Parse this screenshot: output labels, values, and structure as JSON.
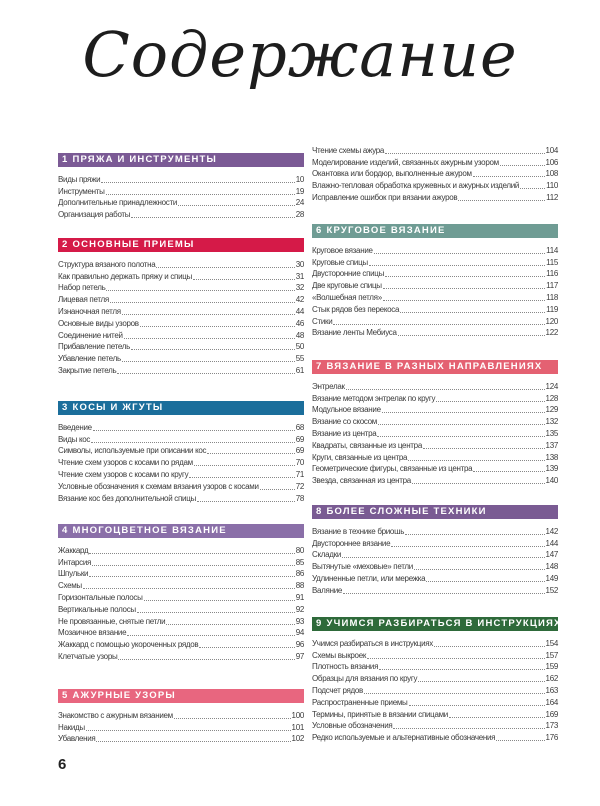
{
  "title": "Содержание",
  "page_number": "6",
  "left_column": [
    {
      "num": "1",
      "title": "ПРЯЖА И ИНСТРУМЕНТЫ",
      "color": "#7b5a95",
      "items": [
        {
          "label": "Виды пряжи",
          "page": "10"
        },
        {
          "label": "Инструменты",
          "page": "19"
        },
        {
          "label": "Дополнительные принадлежности",
          "page": "24"
        },
        {
          "label": "Организация работы",
          "page": "28"
        }
      ]
    },
    {
      "num": "2",
      "title": "ОСНОВНЫЕ ПРИЕМЫ",
      "color": "#d51a48",
      "items": [
        {
          "label": "Структура вязаного полотна",
          "page": "30"
        },
        {
          "label": "Как правильно держать пряжу и спицы",
          "page": "31"
        },
        {
          "label": "Набор петель",
          "page": "32"
        },
        {
          "label": "Лицевая петля",
          "page": "42"
        },
        {
          "label": "Изнаночная петля",
          "page": "44"
        },
        {
          "label": "Основные виды узоров",
          "page": "46"
        },
        {
          "label": "Соединение нитей",
          "page": "48"
        },
        {
          "label": "Прибавление петель",
          "page": "50"
        },
        {
          "label": "Убавление петель",
          "page": "55"
        },
        {
          "label": "Закрытие петель",
          "page": "61"
        }
      ]
    },
    {
      "num": "3",
      "title": "КОСЫ И ЖГУТЫ",
      "color": "#1b6e9b",
      "items": [
        {
          "label": "Введение",
          "page": "68"
        },
        {
          "label": "Виды кос",
          "page": "69"
        },
        {
          "label": "Символы, используемые при описании кос",
          "page": "69"
        },
        {
          "label": "Чтение схем узоров с косами по рядам",
          "page": "70"
        },
        {
          "label": "Чтение схем узоров с косами по кругу",
          "page": "71"
        },
        {
          "label": "Условные обозначения к схемам вязания узоров с косами",
          "page": "72"
        },
        {
          "label": "Вязание кос без дополнительной спицы",
          "page": "78"
        }
      ]
    },
    {
      "num": "4",
      "title": "МНОГОЦВЕТНОЕ ВЯЗАНИЕ",
      "color": "#8a6fa8",
      "items": [
        {
          "label": "Жаккард",
          "page": "80"
        },
        {
          "label": "Интарсия",
          "page": "85"
        },
        {
          "label": "Шпульки",
          "page": "86"
        },
        {
          "label": "Схемы",
          "page": "88"
        },
        {
          "label": "Горизонтальные полосы",
          "page": "91"
        },
        {
          "label": "Вертикальные полосы",
          "page": "92"
        },
        {
          "label": "Не провязанные, снятые петли",
          "page": "93"
        },
        {
          "label": "Мозаичное вязание",
          "page": "94"
        },
        {
          "label": "Жаккард с помощью укороченных рядов",
          "page": "96"
        },
        {
          "label": "Клетчатые узоры",
          "page": "97"
        }
      ]
    },
    {
      "num": "5",
      "title": "АЖУРНЫЕ УЗОРЫ",
      "color": "#e8667f",
      "items": [
        {
          "label": "Знакомство с ажурным вязанием",
          "page": "100"
        },
        {
          "label": "Накиды",
          "page": "101"
        },
        {
          "label": "Убавления",
          "page": "102"
        }
      ]
    }
  ],
  "right_column_continued": [
    {
      "label": "Чтение схемы ажура",
      "page": "104"
    },
    {
      "label": "Моделирование изделий, связанных ажурным узором",
      "page": "106"
    },
    {
      "label": "Окантовка или бордюр, выполненные ажуром",
      "page": "108"
    },
    {
      "label": "Влажно-тепловая обработка кружевных и ажурных изделий",
      "page": "110"
    },
    {
      "label": "Исправление ошибок при вязании ажуров",
      "page": "112"
    }
  ],
  "right_column": [
    {
      "num": "6",
      "title": "КРУГОВОЕ ВЯЗАНИЕ",
      "color": "#6f9c94",
      "items": [
        {
          "label": "Круговое вязание",
          "page": "114"
        },
        {
          "label": "Круговые спицы",
          "page": "115"
        },
        {
          "label": "Двусторонние спицы",
          "page": "116"
        },
        {
          "label": "Две круговые спицы",
          "page": "117"
        },
        {
          "label": "«Волшебная петля»",
          "page": "118"
        },
        {
          "label": "Стык рядов без перекоса",
          "page": "119"
        },
        {
          "label": "Стики",
          "page": "120"
        },
        {
          "label": "Вязание ленты Мебиуса",
          "page": "122"
        }
      ]
    },
    {
      "num": "7",
      "title": "ВЯЗАНИЕ В РАЗНЫХ НАПРАВЛЕНИЯХ",
      "color": "#e46172",
      "items": [
        {
          "label": "Энтрелак",
          "page": "124"
        },
        {
          "label": "Вязание методом энтрелак по кругу",
          "page": "128"
        },
        {
          "label": "Модульное вязание",
          "page": "129"
        },
        {
          "label": "Вязание со скосом",
          "page": "132"
        },
        {
          "label": "Вязание из центра",
          "page": "135"
        },
        {
          "label": "Квадраты, связанные из центра",
          "page": "137"
        },
        {
          "label": "Круги, связанные из центра",
          "page": "138"
        },
        {
          "label": "Геометрические фигуры, связанные из центра",
          "page": "139"
        },
        {
          "label": "Звезда, связанная из центра",
          "page": "140"
        }
      ]
    },
    {
      "num": "8",
      "title": "БОЛЕЕ СЛОЖНЫЕ ТЕХНИКИ",
      "color": "#7a5b93",
      "items": [
        {
          "label": "Вязание в технике бриошь",
          "page": "142"
        },
        {
          "label": "Двустороннее вязание",
          "page": "144"
        },
        {
          "label": "Складки",
          "page": "147"
        },
        {
          "label": "Вытянутые «меховые» петли",
          "page": "148"
        },
        {
          "label": "Удлиненные петли, или мережка",
          "page": "149"
        },
        {
          "label": "Валяние",
          "page": "152"
        }
      ]
    },
    {
      "num": "9",
      "title": "УЧИМСЯ РАЗБИРАТЬСЯ В ИНСТРУКЦИЯХ",
      "color": "#2e6a3a",
      "items": [
        {
          "label": "Учимся разбираться в инструкциях",
          "page": "154"
        },
        {
          "label": "Схемы выкроек",
          "page": "157"
        },
        {
          "label": "Плотность вязания",
          "page": "159"
        },
        {
          "label": "Образцы для вязания по кругу",
          "page": "162"
        },
        {
          "label": "Подсчет рядов",
          "page": "163"
        },
        {
          "label": "Распространенные приемы",
          "page": "164"
        },
        {
          "label": "Термины, принятые в вязании спицами",
          "page": "169"
        },
        {
          "label": "Условные обозначения",
          "page": "173"
        },
        {
          "label": "Редко используемые и альтернативные обозначения",
          "page": "176"
        }
      ]
    }
  ]
}
